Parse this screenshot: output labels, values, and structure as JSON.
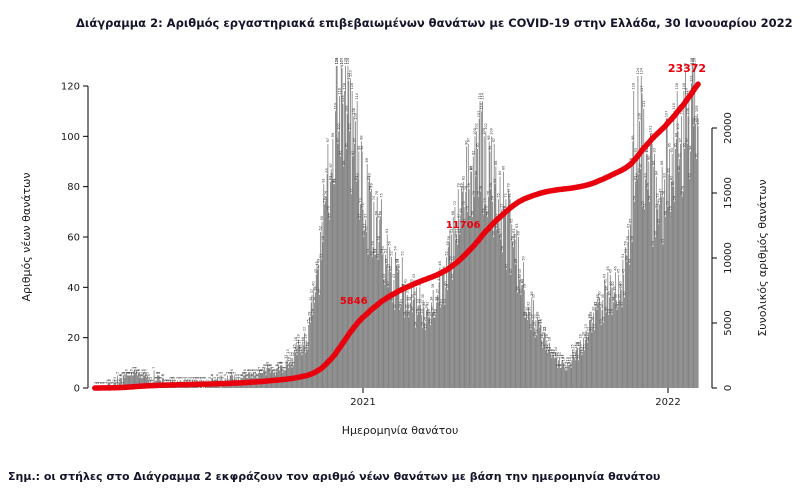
{
  "title": "Διάγραμμα 2: Αριθμός εργαστηριακά επιβεβαιωμένων θανάτων με COVID-19 στην Ελλάδα, 30 Ιανουαρίου 2022",
  "note": "Σημ.: οι στήλες στο Διάγραμμα 2 εκφράζουν τον αριθμό νέων θανάτων με βάση την ημερομηνία θανάτου",
  "chart_data": {
    "type": "bar+line",
    "bar_series_name": "Αριθμός νέων θανάτων (ημερήσιος)",
    "line_series_name": "Συνολικός (αθροιστικός) αριθμός θανάτων",
    "xlabel": "Ημερομηνία θανάτου",
    "ylabel_left": "Αριθμός νέων θανάτων",
    "ylabel_right": "Συνολικός αριθμός θανάτων",
    "x_tick_labels": [
      "2021",
      "2022"
    ],
    "x_tick_days": [
      321,
      686
    ],
    "n_days": 723,
    "yticks_left": [
      0,
      20,
      40,
      60,
      80,
      100,
      120
    ],
    "ylim_left": [
      0,
      128
    ],
    "yticks_right": [
      0,
      5000,
      10000,
      15000,
      20000
    ],
    "ylim_right": [
      0,
      23400
    ],
    "final_total": 23372,
    "annotations": [
      {
        "value": 5846,
        "label": "5846"
      },
      {
        "value": 11706,
        "label": "11706"
      },
      {
        "value": 23372,
        "label": "23372"
      }
    ],
    "key_points": {
      "wave1_peak_daily_late_2020": 128,
      "wave2_peak_daily_spring_2021": 103,
      "summer_2021_min_daily": 8,
      "wave3_peak_daily_winter_2021_22": 125,
      "cumulative_at_end": 23372
    },
    "daily_envelope": [
      [
        0,
        0.5
      ],
      [
        20,
        1.5
      ],
      [
        35,
        4
      ],
      [
        50,
        6
      ],
      [
        65,
        4
      ],
      [
        90,
        2
      ],
      [
        120,
        1.5
      ],
      [
        150,
        2.5
      ],
      [
        175,
        4
      ],
      [
        200,
        6
      ],
      [
        230,
        9
      ],
      [
        255,
        20
      ],
      [
        270,
        50
      ],
      [
        283,
        95
      ],
      [
        292,
        121
      ],
      [
        300,
        112
      ],
      [
        312,
        95
      ],
      [
        325,
        72
      ],
      [
        340,
        58
      ],
      [
        355,
        45
      ],
      [
        375,
        35
      ],
      [
        400,
        30
      ],
      [
        420,
        45
      ],
      [
        440,
        70
      ],
      [
        458,
        93
      ],
      [
        475,
        82
      ],
      [
        495,
        62
      ],
      [
        515,
        38
      ],
      [
        535,
        20
      ],
      [
        550,
        11
      ],
      [
        565,
        9
      ],
      [
        585,
        18
      ],
      [
        605,
        33
      ],
      [
        618,
        40
      ],
      [
        628,
        36
      ],
      [
        640,
        55
      ],
      [
        646,
        100
      ],
      [
        652,
        108
      ],
      [
        660,
        92
      ],
      [
        668,
        78
      ],
      [
        676,
        72
      ],
      [
        684,
        82
      ],
      [
        692,
        92
      ],
      [
        700,
        98
      ],
      [
        708,
        110
      ],
      [
        716,
        120
      ],
      [
        723,
        124
      ]
    ],
    "seed": 7,
    "grid": false,
    "legend": "none",
    "colors": {
      "bar": "#7d7d7d",
      "bar_label": "#3a3a3a",
      "line": "#e8000d",
      "annotation": "#e8000d",
      "axis": "#000000",
      "axis_text": "#1a1a1a"
    }
  }
}
